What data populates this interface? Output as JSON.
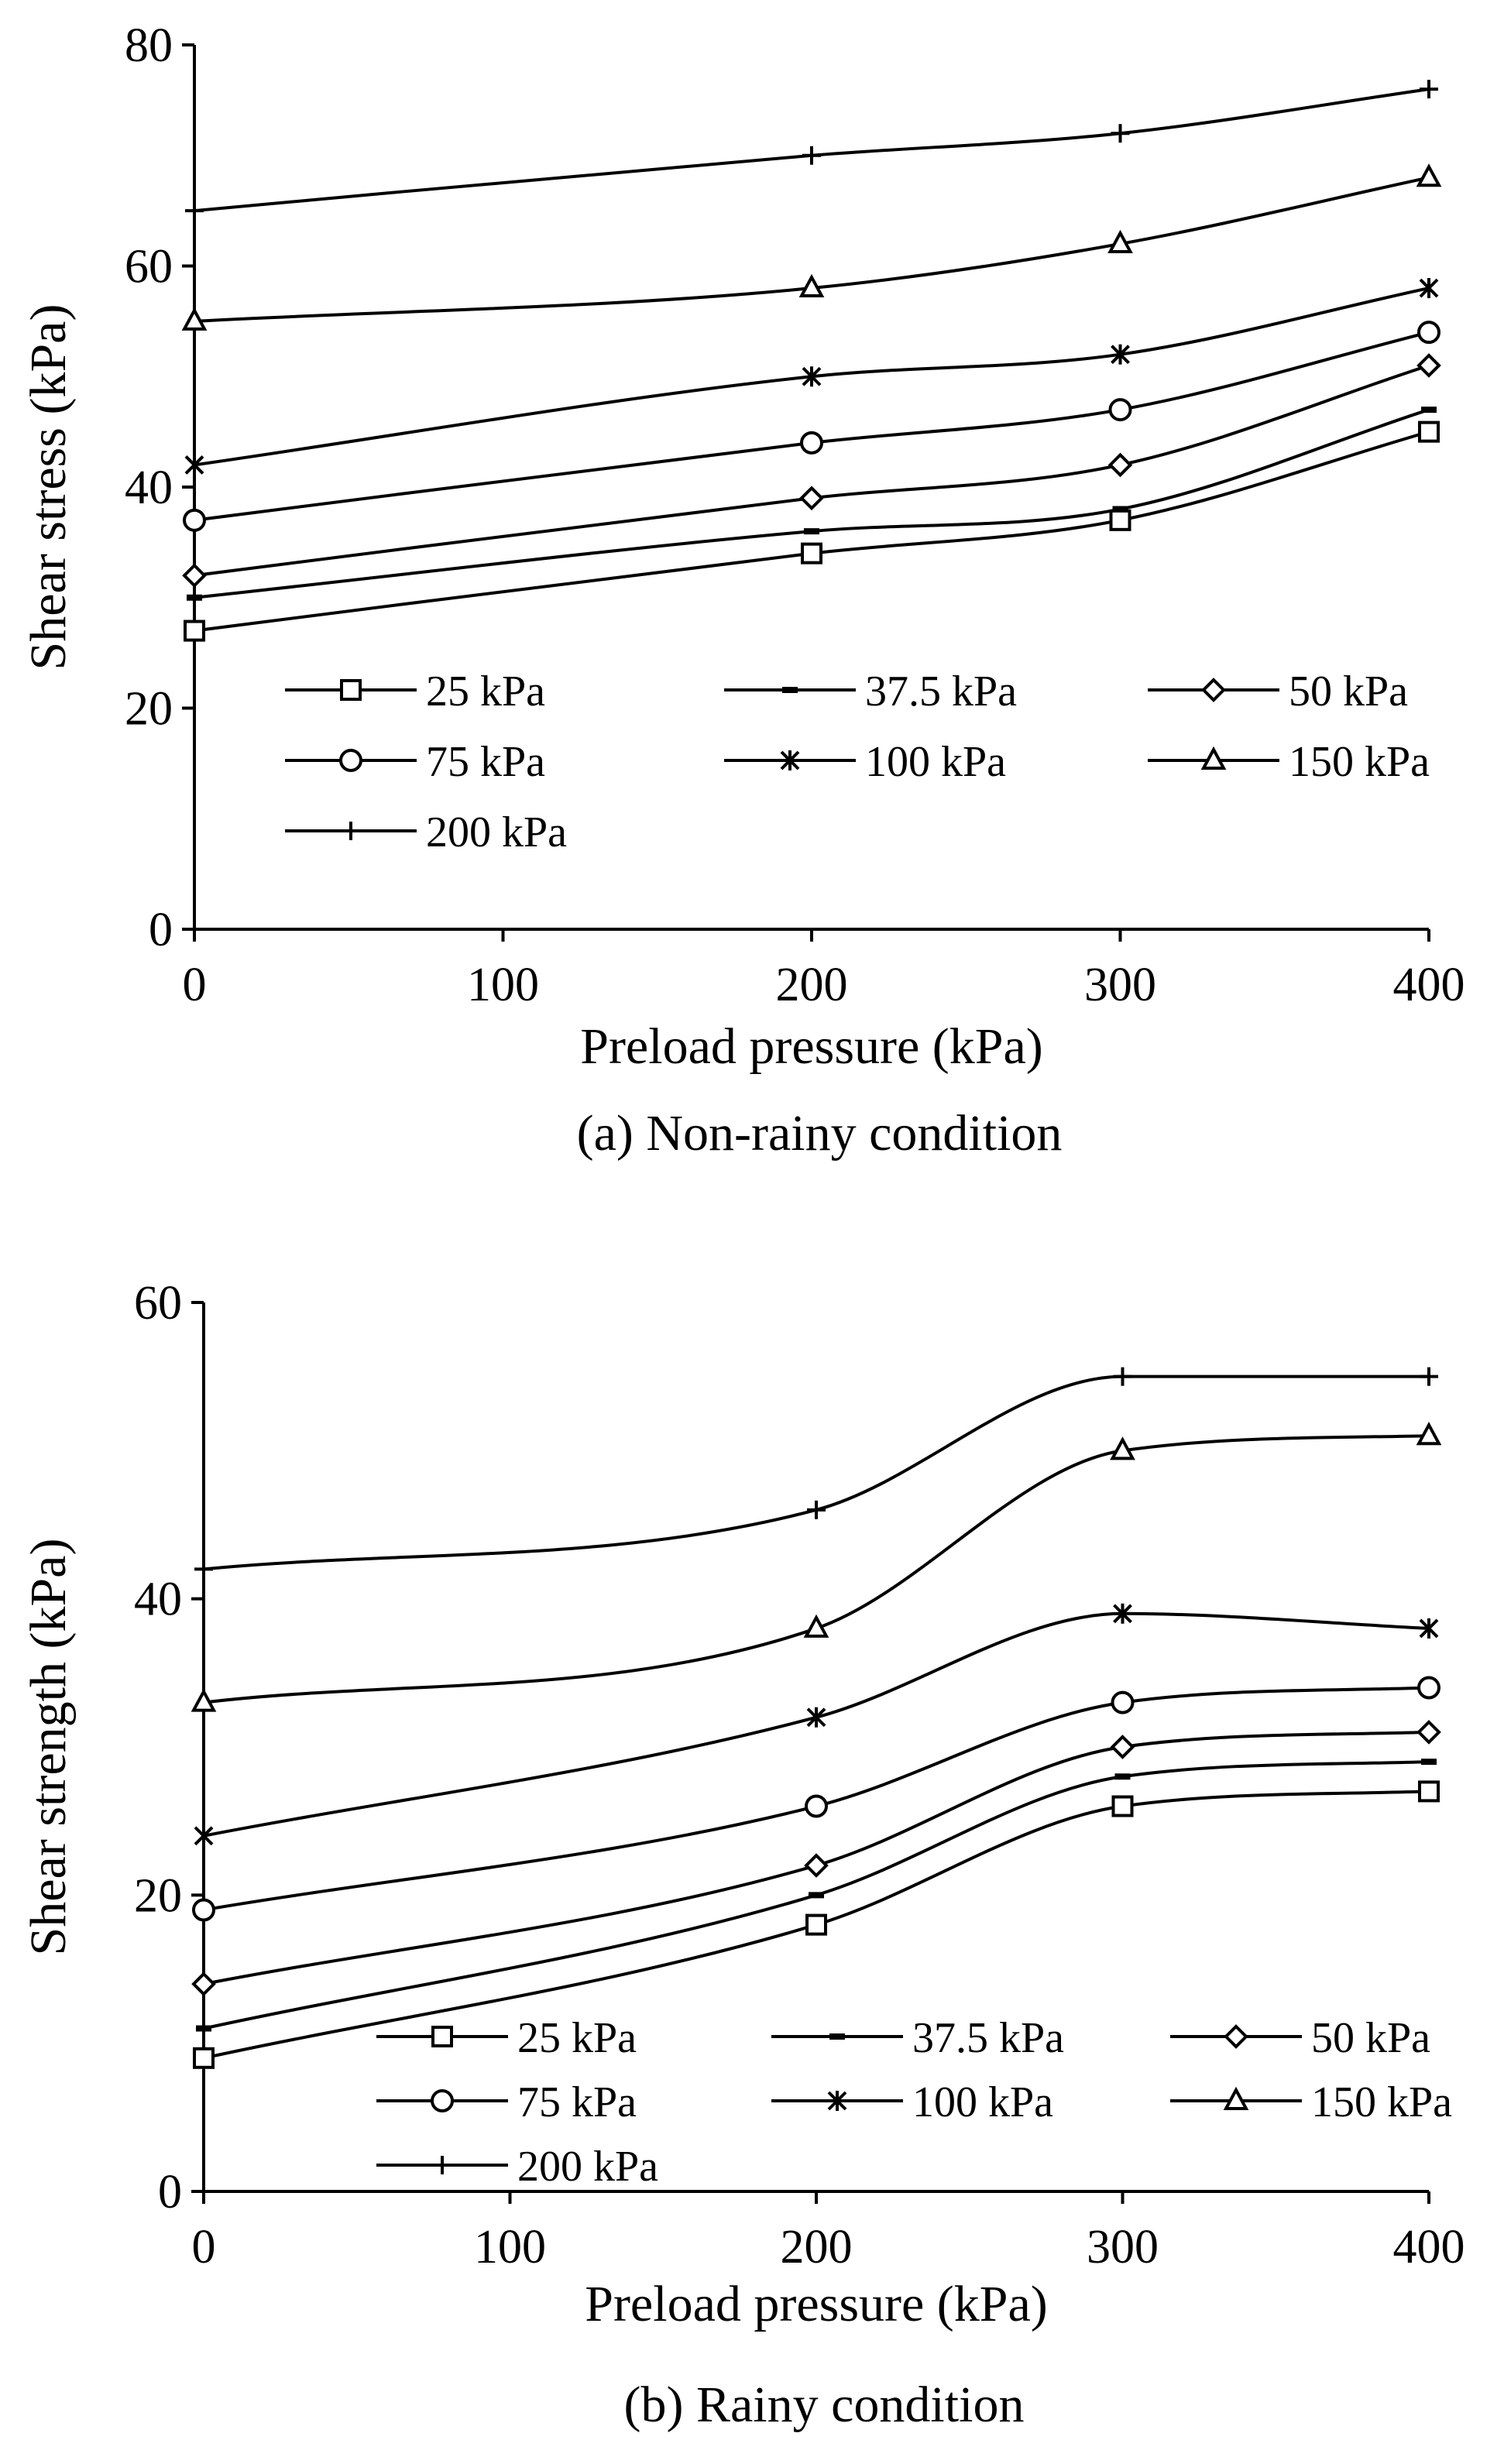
{
  "chart_data": [
    {
      "type": "line",
      "caption": "(a) Non-rainy condition",
      "xlabel": "Preload pressure (kPa)",
      "ylabel": "Shear stress (kPa)",
      "xlim": [
        0,
        400
      ],
      "ylim": [
        0,
        80
      ],
      "xticks": [
        0,
        100,
        200,
        300,
        400
      ],
      "yticks": [
        0,
        20,
        40,
        60,
        80
      ],
      "x": [
        0,
        200,
        300,
        400
      ],
      "grid": false,
      "legend_position": "lower-left",
      "series": [
        {
          "name": "25 kPa",
          "marker": "square",
          "values": [
            27,
            34,
            37,
            45
          ]
        },
        {
          "name": "37.5 kPa",
          "marker": "dash",
          "values": [
            30,
            36,
            38,
            47
          ]
        },
        {
          "name": "50 kPa",
          "marker": "diamond",
          "values": [
            32,
            39,
            42,
            51
          ]
        },
        {
          "name": "75 kPa",
          "marker": "circle",
          "values": [
            37,
            44,
            47,
            54
          ]
        },
        {
          "name": "100 kPa",
          "marker": "star",
          "values": [
            42,
            50,
            52,
            58
          ]
        },
        {
          "name": "150 kPa",
          "marker": "triangle",
          "values": [
            55,
            58,
            62,
            68
          ]
        },
        {
          "name": "200 kPa",
          "marker": "plus",
          "values": [
            65,
            70,
            72,
            76
          ]
        }
      ]
    },
    {
      "type": "line",
      "caption": "(b) Rainy condition",
      "xlabel": "Preload pressure (kPa)",
      "ylabel": "Shear strength (kPa)",
      "xlim": [
        0,
        400
      ],
      "ylim": [
        0,
        60
      ],
      "xticks": [
        0,
        100,
        200,
        300,
        400
      ],
      "yticks": [
        0,
        20,
        40,
        60
      ],
      "x": [
        0,
        200,
        300,
        400
      ],
      "grid": false,
      "legend_position": "lower-left",
      "series": [
        {
          "name": "25 kPa",
          "marker": "square",
          "values": [
            9,
            18,
            26,
            27
          ]
        },
        {
          "name": "37.5 kPa",
          "marker": "dash",
          "values": [
            11,
            20,
            28,
            29
          ]
        },
        {
          "name": "50 kPa",
          "marker": "diamond",
          "values": [
            14,
            22,
            30,
            31
          ]
        },
        {
          "name": "75 kPa",
          "marker": "circle",
          "values": [
            19,
            26,
            33,
            34
          ]
        },
        {
          "name": "100 kPa",
          "marker": "star",
          "values": [
            24,
            32,
            39,
            38
          ]
        },
        {
          "name": "150 kPa",
          "marker": "triangle",
          "values": [
            33,
            38,
            50,
            51
          ]
        },
        {
          "name": "200 kPa",
          "marker": "plus",
          "values": [
            42,
            46,
            55,
            55
          ]
        }
      ]
    }
  ]
}
